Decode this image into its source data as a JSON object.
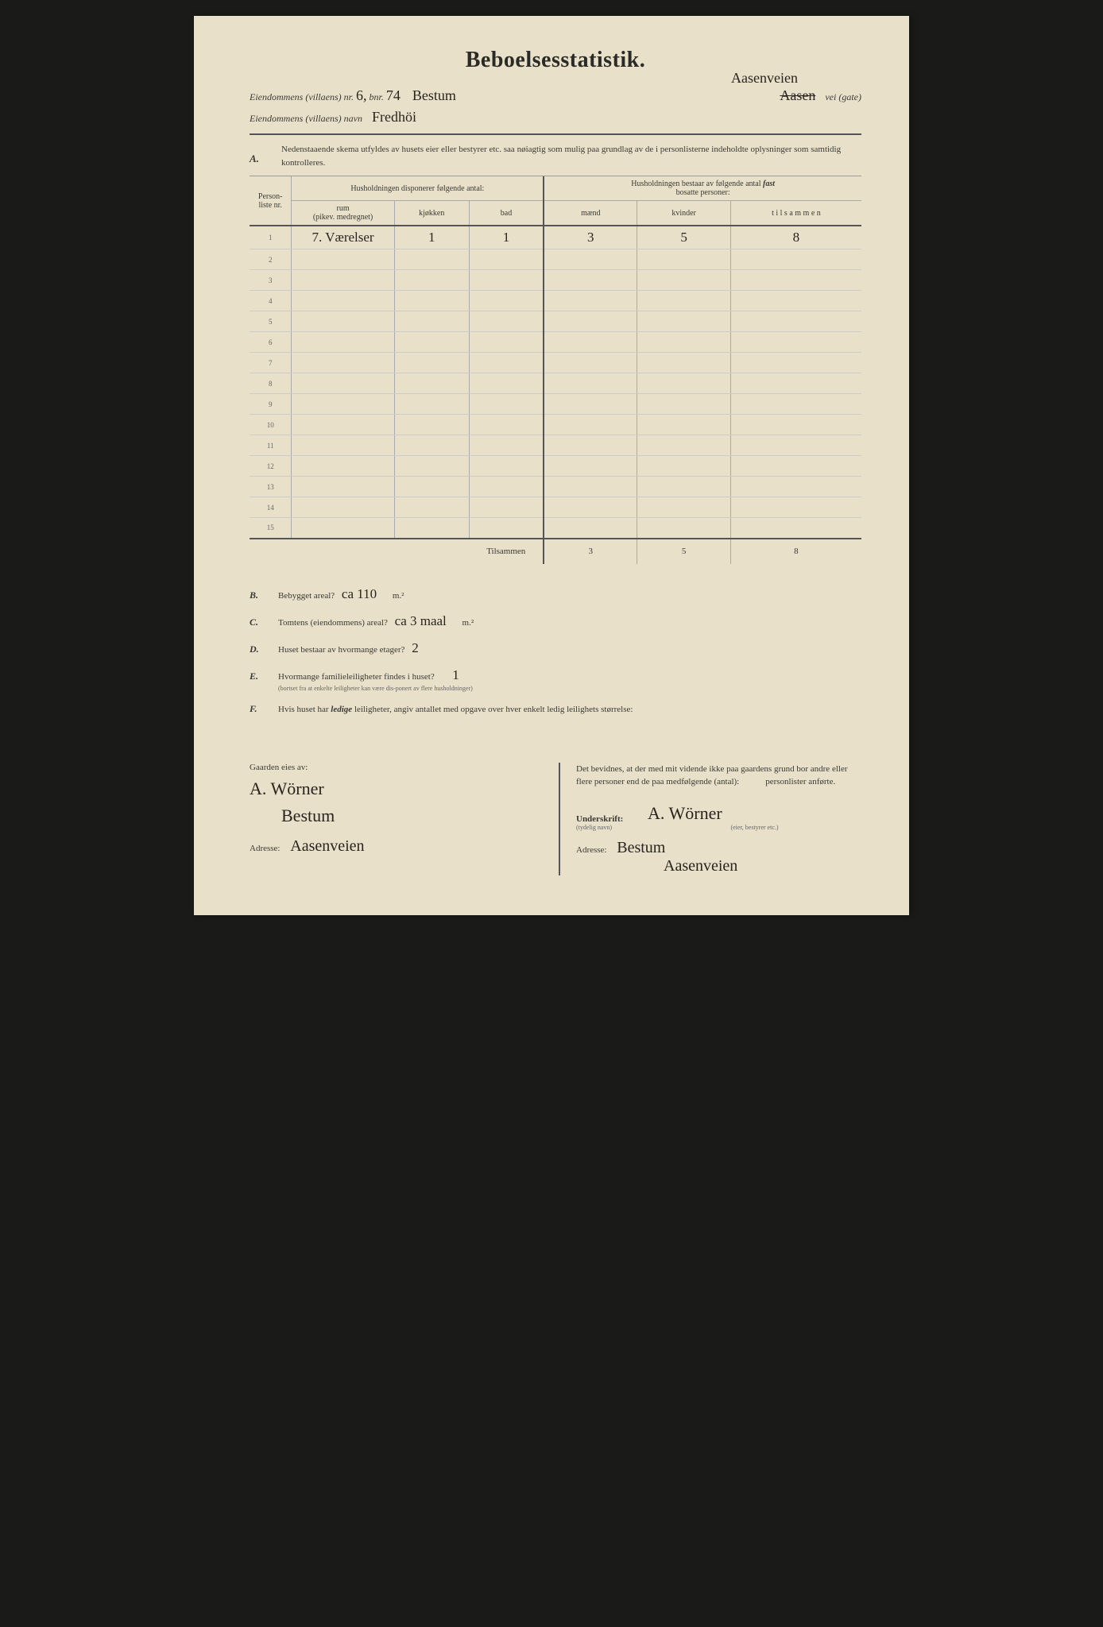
{
  "title": "Beboelsesstatistik.",
  "header": {
    "line1_label": "Eiendommens (villaens) nr.",
    "nr": "6,",
    "bnr_label": "bnr.",
    "bnr": "74",
    "place": "Bestum",
    "annotation_top": "Aasenveien",
    "struck": "Aasen",
    "vei_label": "vei (gate)",
    "line2_label": "Eiendommens (villaens) navn",
    "navn": "Fredhöi"
  },
  "section_a": {
    "letter": "A.",
    "text": "Nedenstaaende skema utfyldes av husets eier eller bestyrer etc. saa nøiagtig som mulig paa grundlag av de i personlisterne indeholdte oplysninger som samtidig kontrolleres."
  },
  "table": {
    "col_personliste": "Person-liste nr.",
    "col_hush_left": "Husholdningen disponerer følgende antal:",
    "col_hush_right_1": "Husholdningen bestaar av følgende antal",
    "col_hush_right_2": "fast",
    "col_hush_right_3": "bosatte personer:",
    "col_rum": "rum",
    "col_rum_sub": "(pikev. medregnet)",
    "col_kjokken": "kjøkken",
    "col_bad": "bad",
    "col_maend": "mænd",
    "col_kvinder": "kvinder",
    "col_tilsammen": "t i l s a m m e n",
    "rows": [
      {
        "nr": "1",
        "rum": "7. Værelser",
        "kjokken": "1",
        "bad": "1",
        "maend": "3",
        "kvinder": "5",
        "tilsammen": "8"
      },
      {
        "nr": "2",
        "rum": "",
        "kjokken": "",
        "bad": "",
        "maend": "",
        "kvinder": "",
        "tilsammen": ""
      },
      {
        "nr": "3",
        "rum": "",
        "kjokken": "",
        "bad": "",
        "maend": "",
        "kvinder": "",
        "tilsammen": ""
      },
      {
        "nr": "4",
        "rum": "",
        "kjokken": "",
        "bad": "",
        "maend": "",
        "kvinder": "",
        "tilsammen": ""
      },
      {
        "nr": "5",
        "rum": "",
        "kjokken": "",
        "bad": "",
        "maend": "",
        "kvinder": "",
        "tilsammen": ""
      },
      {
        "nr": "6",
        "rum": "",
        "kjokken": "",
        "bad": "",
        "maend": "",
        "kvinder": "",
        "tilsammen": ""
      },
      {
        "nr": "7",
        "rum": "",
        "kjokken": "",
        "bad": "",
        "maend": "",
        "kvinder": "",
        "tilsammen": ""
      },
      {
        "nr": "8",
        "rum": "",
        "kjokken": "",
        "bad": "",
        "maend": "",
        "kvinder": "",
        "tilsammen": ""
      },
      {
        "nr": "9",
        "rum": "",
        "kjokken": "",
        "bad": "",
        "maend": "",
        "kvinder": "",
        "tilsammen": ""
      },
      {
        "nr": "10",
        "rum": "",
        "kjokken": "",
        "bad": "",
        "maend": "",
        "kvinder": "",
        "tilsammen": ""
      },
      {
        "nr": "11",
        "rum": "",
        "kjokken": "",
        "bad": "",
        "maend": "",
        "kvinder": "",
        "tilsammen": ""
      },
      {
        "nr": "12",
        "rum": "",
        "kjokken": "",
        "bad": "",
        "maend": "",
        "kvinder": "",
        "tilsammen": ""
      },
      {
        "nr": "13",
        "rum": "",
        "kjokken": "",
        "bad": "",
        "maend": "",
        "kvinder": "",
        "tilsammen": ""
      },
      {
        "nr": "14",
        "rum": "",
        "kjokken": "",
        "bad": "",
        "maend": "",
        "kvinder": "",
        "tilsammen": ""
      },
      {
        "nr": "15",
        "rum": "",
        "kjokken": "",
        "bad": "",
        "maend": "",
        "kvinder": "",
        "tilsammen": ""
      }
    ],
    "totals_label": "Tilsammen",
    "totals": {
      "maend": "3",
      "kvinder": "5",
      "tilsammen": "8"
    }
  },
  "questions": {
    "b": {
      "letter": "B.",
      "text": "Bebygget areal?",
      "hw": "ca 110",
      "unit": "m.²"
    },
    "c": {
      "letter": "C.",
      "text": "Tomtens (eiendommens) areal?",
      "hw": "ca 3 maal",
      "unit": "m.²"
    },
    "d": {
      "letter": "D.",
      "text": "Huset bestaar av hvormange etager?",
      "hw": "2"
    },
    "e": {
      "letter": "E.",
      "text": "Hvormange familieleiligheter findes i huset?",
      "hw": "1",
      "sub": "(bortset fra at enkelte leiligheter kan være dis-ponert av flere husholdninger)"
    },
    "f": {
      "letter": "F.",
      "text_1": "Hvis huset har",
      "text_italic": "ledige",
      "text_2": "leiligheter, angiv antallet med opgave over hver enkelt ledig leilighets størrelse:"
    }
  },
  "footer": {
    "left_title": "Gaarden eies av:",
    "owner_sig": "A. Wörner",
    "owner_place": "Bestum",
    "adresse_label": "Adresse:",
    "owner_adresse": "Aasenveien",
    "right_text_1": "Det bevidnes, at der med mit vidende ikke paa gaardens grund bor andre eller flere personer end de paa medfølgende (antal):",
    "right_text_2": "personlister anførte.",
    "underskrift_label": "Underskrift:",
    "underskrift_sub": "(tydelig navn)",
    "sig": "A. Wörner",
    "sig_sub": "(eier, bestyrer etc.)",
    "r_adresse_label": "Adresse:",
    "r_adresse_1": "Bestum",
    "r_adresse_2": "Aasenveien"
  }
}
